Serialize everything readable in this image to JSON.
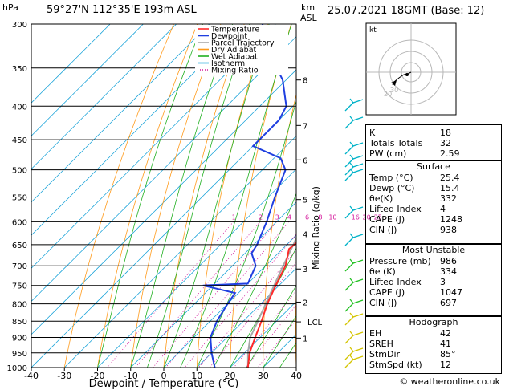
{
  "header": {
    "hpa_unit": "hPa",
    "location": "59°27'N  112°35'E  193m  ASL",
    "km_unit": "km",
    "asl_unit": "ASL",
    "datetime": "25.07.2021  18GMT  (Base: 12)"
  },
  "footer": {
    "credit": "© weatheronline.co.uk"
  },
  "colors": {
    "temperature": "#ff2a2a",
    "dewpoint": "#1f3fe0",
    "parcel": "#a8a8a8",
    "dry_adiabat": "#ff9a1a",
    "wet_adiabat": "#21b021",
    "isotherm": "#1aa3d9",
    "mixing_ratio": "#d4169b",
    "wind_barb": "#00b2c8",
    "wind_barb_low": "#22c022",
    "wind_barb_sfc": "#d4c400"
  },
  "chart_data": {
    "type": "skew-t",
    "xlabel": "Dewpoint / Temperature (°C)",
    "ylabel_right": "Mixing Ratio (g/kg)",
    "xlim": [
      -40,
      40
    ],
    "x_ticks": [
      "-40",
      "-30",
      "-20",
      "-10",
      "0",
      "10",
      "20",
      "30",
      "40"
    ],
    "pressure_levels": [
      "300",
      "350",
      "400",
      "450",
      "500",
      "550",
      "600",
      "650",
      "700",
      "750",
      "800",
      "850",
      "900",
      "950",
      "1000"
    ],
    "km_ticks": [
      {
        "label": "8",
        "p": 365
      },
      {
        "label": "7",
        "p": 428
      },
      {
        "label": "6",
        "p": 483
      },
      {
        "label": "5",
        "p": 555
      },
      {
        "label": "4",
        "p": 626
      },
      {
        "label": "3",
        "p": 708
      },
      {
        "label": "2",
        "p": 795
      },
      {
        "label": "LCL",
        "p": 852
      },
      {
        "label": "1",
        "p": 902
      }
    ],
    "mixing_ratio_labels": [
      "1",
      "2",
      "3",
      "4",
      "6",
      "8",
      "10",
      "16",
      "20",
      "25"
    ],
    "legend": [
      "Temperature",
      "Dewpoint",
      "Parcel Trajectory",
      "Dry Adiabat",
      "Wet Adiabat",
      "Isotherm",
      "Mixing Ratio"
    ],
    "temperature": [
      {
        "p": 1000,
        "t": 25.4
      },
      {
        "p": 950,
        "t": 21.5
      },
      {
        "p": 900,
        "t": 18.5
      },
      {
        "p": 850,
        "t": 15.5
      },
      {
        "p": 800,
        "t": 12
      },
      {
        "p": 750,
        "t": 9
      },
      {
        "p": 700,
        "t": 6
      },
      {
        "p": 660,
        "t": 2
      },
      {
        "p": 620,
        "t": 3
      },
      {
        "p": 600,
        "t": 1
      },
      {
        "p": 550,
        "t": -3
      },
      {
        "p": 500,
        "t": -8
      },
      {
        "p": 450,
        "t": -13
      },
      {
        "p": 400,
        "t": -21
      },
      {
        "p": 380,
        "t": -24
      },
      {
        "p": 360,
        "t": -30
      },
      {
        "p": 345,
        "t": -39
      },
      {
        "p": 300,
        "t": -52
      }
    ],
    "dewpoint": [
      {
        "p": 1000,
        "t": 15.4
      },
      {
        "p": 950,
        "t": 10
      },
      {
        "p": 900,
        "t": 5
      },
      {
        "p": 850,
        "t": 2
      },
      {
        "p": 800,
        "t": 0
      },
      {
        "p": 770,
        "t": -1
      },
      {
        "p": 750,
        "t": -13
      },
      {
        "p": 745,
        "t": 0
      },
      {
        "p": 700,
        "t": -3
      },
      {
        "p": 670,
        "t": -8
      },
      {
        "p": 650,
        "t": -9
      },
      {
        "p": 600,
        "t": -13
      },
      {
        "p": 550,
        "t": -18
      },
      {
        "p": 500,
        "t": -23
      },
      {
        "p": 480,
        "t": -28
      },
      {
        "p": 460,
        "t": -40
      },
      {
        "p": 420,
        "t": -40
      },
      {
        "p": 400,
        "t": -42
      },
      {
        "p": 365,
        "t": -51
      },
      {
        "p": 330,
        "t": -64
      },
      {
        "p": 300,
        "t": -74
      }
    ],
    "parcel": [
      {
        "p": 1000,
        "t": 25.4
      },
      {
        "p": 950,
        "t": 21
      },
      {
        "p": 900,
        "t": 17
      },
      {
        "p": 852,
        "t": 14.5
      },
      {
        "p": 800,
        "t": 11.5
      },
      {
        "p": 750,
        "t": 8.5
      },
      {
        "p": 700,
        "t": 5.3
      },
      {
        "p": 650,
        "t": 2
      },
      {
        "p": 600,
        "t": -2
      },
      {
        "p": 550,
        "t": -6
      },
      {
        "p": 500,
        "t": -11
      },
      {
        "p": 450,
        "t": -16.5
      },
      {
        "p": 400,
        "t": -23
      },
      {
        "p": 350,
        "t": -31
      },
      {
        "p": 300,
        "t": -40
      }
    ]
  },
  "hodograph": {
    "label": "kt",
    "ring_labels": [
      "20",
      "30"
    ]
  },
  "indices": {
    "top": [
      {
        "key": "K",
        "value": "18"
      },
      {
        "key": "Totals Totals",
        "value": "32"
      },
      {
        "key": "PW (cm)",
        "value": "2.59"
      }
    ],
    "surface": {
      "title": "Surface",
      "rows": [
        {
          "key": "Temp (°C)",
          "value": "25.4"
        },
        {
          "key": "Dewp (°C)",
          "value": "15.4"
        },
        {
          "key": "θe(K)",
          "value": "332"
        },
        {
          "key": "Lifted Index",
          "value": "4"
        },
        {
          "key": "CAPE (J)",
          "value": "1248"
        },
        {
          "key": "CIN (J)",
          "value": "938"
        }
      ]
    },
    "most_unstable": {
      "title": "Most Unstable",
      "rows": [
        {
          "key": "Pressure (mb)",
          "value": "986"
        },
        {
          "key": "θe (K)",
          "value": "334"
        },
        {
          "key": "Lifted Index",
          "value": "3"
        },
        {
          "key": "CAPE (J)",
          "value": "1047"
        },
        {
          "key": "CIN (J)",
          "value": "697"
        }
      ]
    },
    "hodograph": {
      "title": "Hodograph",
      "rows": [
        {
          "key": "EH",
          "value": "42"
        },
        {
          "key": "SREH",
          "value": "41"
        },
        {
          "key": "StmDir",
          "value": "85°"
        },
        {
          "key": "StmSpd (kt)",
          "value": "12"
        }
      ]
    }
  }
}
